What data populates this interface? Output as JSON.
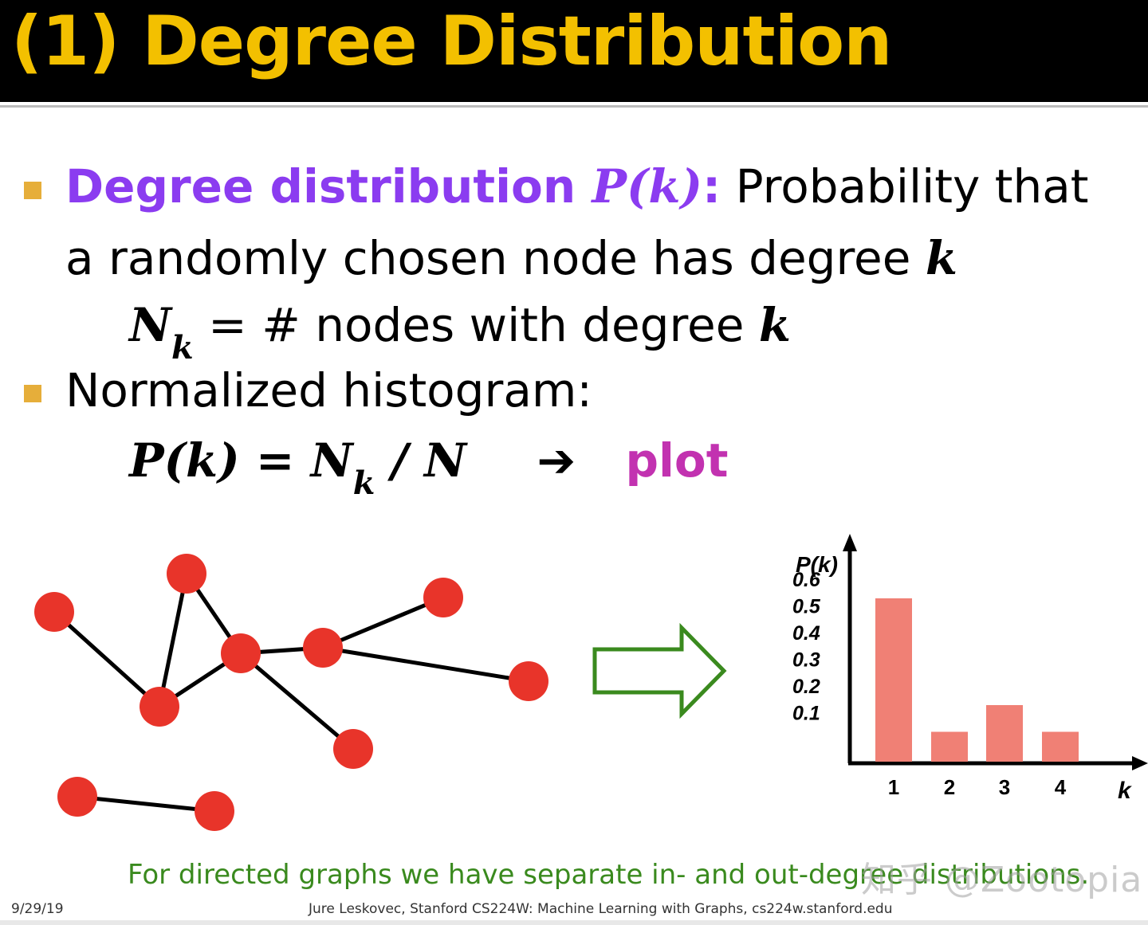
{
  "slide": {
    "title": "(1) Degree Distribution",
    "bullet1_bold": "Degree distribution ",
    "bullet1_pk": "P(k)",
    "bullet1_colon": ":",
    "bullet1_rest": " Probability that",
    "bullet1_line2": "a randomly chosen node has degree ",
    "bullet1_k": "k",
    "nk_N": "N",
    "nk_sub": "k",
    "nk_eq": " = ",
    "nk_text": "# nodes with degree ",
    "nk_k": "k",
    "bullet2": "Normalized histogram:",
    "formula_pk": "P(k) = N",
    "formula_sub": "k",
    "formula_rest": " / N",
    "formula_arrow": "➔",
    "formula_plot": "plot",
    "footnote": "For directed graphs we have separate in- and out-degree distributions.",
    "watermark": "知乎 @Zootopia",
    "footer_date": "9/29/19",
    "footer_credit": "Jure Leskovec, Stanford CS224W: Machine Learning with Graphs, cs224w.stanford.edu"
  },
  "colors": {
    "title": "#f3c000",
    "node": "#e8342a",
    "bar": "#f08075",
    "arrow": "#3a8a1e",
    "purple": "#8b3cf0",
    "magenta": "#c232b0"
  },
  "chart_data": {
    "type": "bar",
    "ylabel": "P(k)",
    "xlabel": "k",
    "categories": [
      "1",
      "2",
      "3",
      "4"
    ],
    "values": [
      0.6,
      0.1,
      0.2,
      0.1
    ],
    "yticks": [
      "0.6",
      "0.5",
      "0.4",
      "0.3",
      "0.2",
      "0.1"
    ],
    "ylim": [
      0,
      0.6
    ],
    "grid": false
  }
}
